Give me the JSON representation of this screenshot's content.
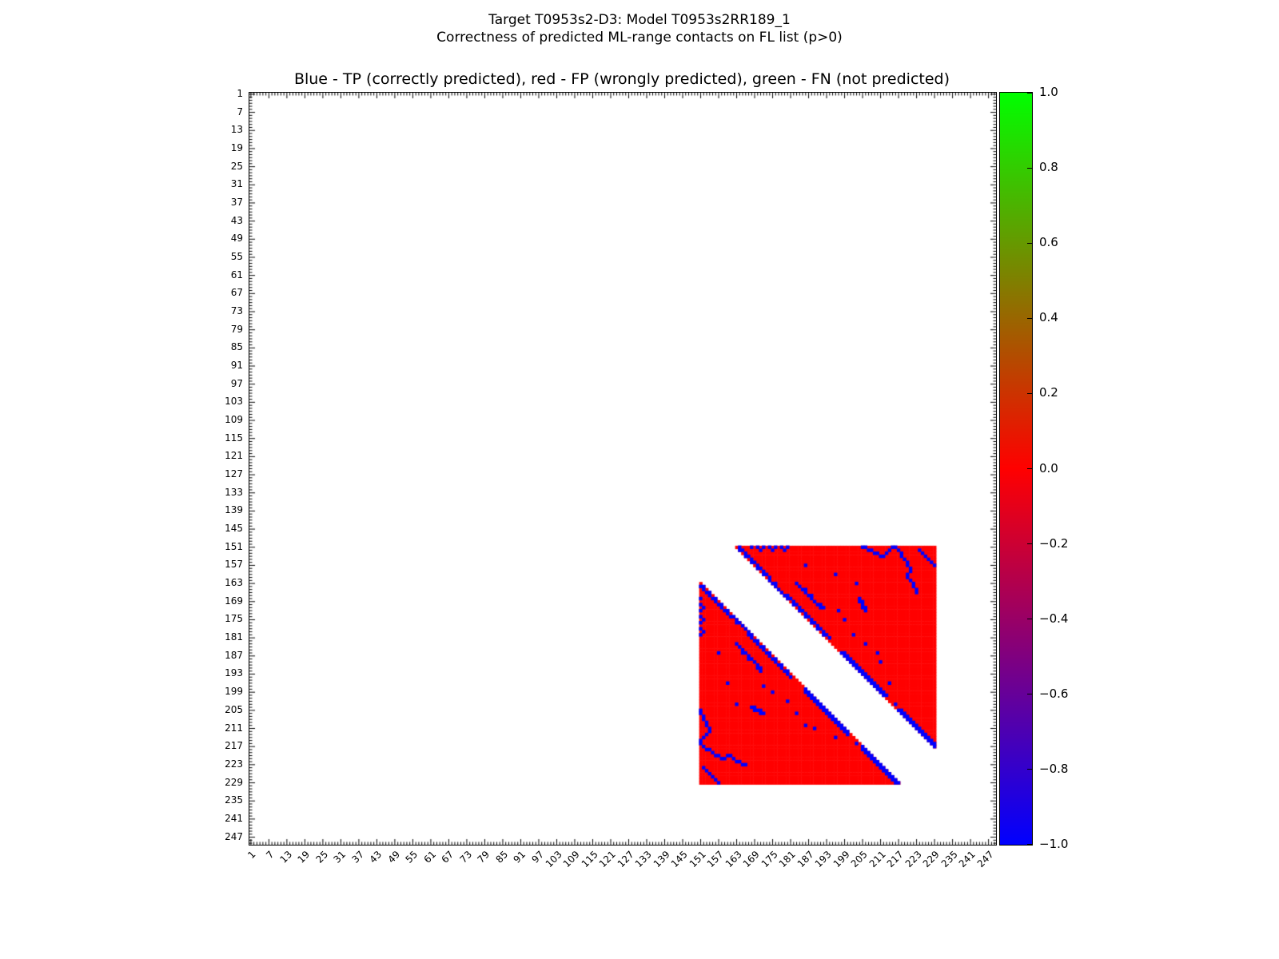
{
  "figure": {
    "suptitle_line1": "Target T0953s2-D3: Model T0953s2RR189_1",
    "suptitle_line2": "Correctness of predicted ML-range contacts on FL list (p>0)",
    "axes_title": "Blue - TP (correctly predicted), red - FP (wrongly predicted), green - FN (not predicted)"
  },
  "chart_data": {
    "type": "heatmap",
    "title": "Blue - TP (correctly predicted), red - FP (wrongly predicted), green - FN (not predicted)",
    "xlabel": "",
    "ylabel": "",
    "x_range": [
      1,
      249
    ],
    "y_range": [
      1,
      249
    ],
    "tick_step": 6,
    "x_tick_labels": [
      "1",
      "7",
      "13",
      "19",
      "25",
      "31",
      "37",
      "43",
      "49",
      "55",
      "61",
      "67",
      "73",
      "79",
      "85",
      "91",
      "97",
      "103",
      "109",
      "115",
      "121",
      "127",
      "133",
      "139",
      "145",
      "151",
      "157",
      "163",
      "169",
      "175",
      "181",
      "187",
      "193",
      "199",
      "205",
      "211",
      "217",
      "223",
      "229",
      "235",
      "241",
      "247"
    ],
    "y_tick_labels": [
      "1",
      "7",
      "13",
      "19",
      "25",
      "31",
      "37",
      "43",
      "49",
      "55",
      "61",
      "67",
      "73",
      "79",
      "85",
      "91",
      "97",
      "103",
      "109",
      "115",
      "121",
      "127",
      "133",
      "139",
      "145",
      "151",
      "157",
      "163",
      "169",
      "175",
      "181",
      "187",
      "193",
      "199",
      "205",
      "211",
      "217",
      "223",
      "229",
      "235",
      "241",
      "247"
    ],
    "legend": {
      "tp": {
        "label": "TP (correctly predicted)",
        "color": "#0000ff"
      },
      "fp": {
        "label": "FP (wrongly predicted)",
        "color": "#ff0000"
      },
      "fn": {
        "label": "FN (not predicted)",
        "color": "#00ff00"
      }
    },
    "region": {
      "start": 151,
      "end": 229,
      "min_sequence_separation": 12,
      "fill": "fp"
    },
    "tp_contacts": [
      [
        151,
        164
      ],
      [
        152,
        164
      ],
      [
        152,
        165
      ],
      [
        153,
        166
      ],
      [
        154,
        166
      ],
      [
        154,
        167
      ],
      [
        155,
        168
      ],
      [
        156,
        168
      ],
      [
        156,
        169
      ],
      [
        157,
        170
      ],
      [
        158,
        170
      ],
      [
        158,
        171
      ],
      [
        159,
        172
      ],
      [
        160,
        172
      ],
      [
        160,
        173
      ],
      [
        161,
        174
      ],
      [
        162,
        174
      ],
      [
        163,
        175
      ],
      [
        163,
        176
      ],
      [
        164,
        176
      ],
      [
        165,
        177
      ],
      [
        166,
        178
      ],
      [
        167,
        179
      ],
      [
        167,
        180
      ],
      [
        168,
        180
      ],
      [
        168,
        181
      ],
      [
        169,
        182
      ],
      [
        170,
        182
      ],
      [
        170,
        183
      ],
      [
        171,
        184
      ],
      [
        172,
        184
      ],
      [
        172,
        185
      ],
      [
        173,
        186
      ],
      [
        174,
        186
      ],
      [
        174,
        187
      ],
      [
        175,
        188
      ],
      [
        176,
        188
      ],
      [
        176,
        189
      ],
      [
        177,
        190
      ],
      [
        178,
        190
      ],
      [
        178,
        191
      ],
      [
        179,
        192
      ],
      [
        180,
        192
      ],
      [
        180,
        193
      ],
      [
        181,
        194
      ],
      [
        186,
        198
      ],
      [
        186,
        199
      ],
      [
        187,
        199
      ],
      [
        187,
        200
      ],
      [
        188,
        200
      ],
      [
        188,
        201
      ],
      [
        189,
        201
      ],
      [
        189,
        202
      ],
      [
        190,
        202
      ],
      [
        190,
        203
      ],
      [
        191,
        203
      ],
      [
        191,
        204
      ],
      [
        192,
        204
      ],
      [
        192,
        205
      ],
      [
        193,
        205
      ],
      [
        193,
        206
      ],
      [
        194,
        206
      ],
      [
        194,
        207
      ],
      [
        195,
        207
      ],
      [
        195,
        208
      ],
      [
        196,
        208
      ],
      [
        196,
        209
      ],
      [
        197,
        209
      ],
      [
        197,
        210
      ],
      [
        198,
        210
      ],
      [
        198,
        211
      ],
      [
        199,
        211
      ],
      [
        199,
        212
      ],
      [
        200,
        212
      ],
      [
        200,
        213
      ],
      [
        205,
        217
      ],
      [
        205,
        218
      ],
      [
        206,
        218
      ],
      [
        206,
        219
      ],
      [
        207,
        219
      ],
      [
        207,
        220
      ],
      [
        208,
        220
      ],
      [
        208,
        221
      ],
      [
        209,
        221
      ],
      [
        209,
        222
      ],
      [
        210,
        222
      ],
      [
        210,
        223
      ],
      [
        211,
        223
      ],
      [
        211,
        224
      ],
      [
        212,
        224
      ],
      [
        212,
        225
      ],
      [
        213,
        225
      ],
      [
        213,
        226
      ],
      [
        214,
        226
      ],
      [
        214,
        227
      ],
      [
        215,
        227
      ],
      [
        215,
        228
      ],
      [
        216,
        228
      ],
      [
        216,
        229
      ],
      [
        217,
        229
      ],
      [
        151,
        168
      ],
      [
        151,
        170
      ],
      [
        152,
        171
      ],
      [
        151,
        172
      ],
      [
        151,
        174
      ],
      [
        152,
        175
      ],
      [
        151,
        176
      ],
      [
        151,
        178
      ],
      [
        152,
        179
      ],
      [
        151,
        180
      ],
      [
        151,
        205
      ],
      [
        151,
        206
      ],
      [
        152,
        207
      ],
      [
        152,
        208
      ],
      [
        153,
        209
      ],
      [
        153,
        210
      ],
      [
        154,
        211
      ],
      [
        154,
        212
      ],
      [
        153,
        213
      ],
      [
        152,
        214
      ],
      [
        151,
        215
      ],
      [
        151,
        216
      ],
      [
        152,
        217
      ],
      [
        153,
        218
      ],
      [
        154,
        218
      ],
      [
        155,
        219
      ],
      [
        156,
        220
      ],
      [
        157,
        220
      ],
      [
        158,
        221
      ],
      [
        159,
        221
      ],
      [
        160,
        220
      ],
      [
        161,
        220
      ],
      [
        162,
        221
      ],
      [
        163,
        222
      ],
      [
        164,
        222
      ],
      [
        165,
        223
      ],
      [
        166,
        223
      ],
      [
        152,
        224
      ],
      [
        153,
        225
      ],
      [
        154,
        226
      ],
      [
        155,
        227
      ],
      [
        156,
        228
      ],
      [
        157,
        229
      ],
      [
        168,
        204
      ],
      [
        169,
        204
      ],
      [
        169,
        205
      ],
      [
        170,
        205
      ],
      [
        171,
        205
      ],
      [
        171,
        206
      ],
      [
        172,
        206
      ],
      [
        163,
        183
      ],
      [
        164,
        184
      ],
      [
        165,
        185
      ],
      [
        165,
        186
      ],
      [
        166,
        186
      ],
      [
        167,
        187
      ],
      [
        167,
        188
      ],
      [
        168,
        188
      ],
      [
        169,
        189
      ],
      [
        170,
        190
      ],
      [
        170,
        191
      ],
      [
        171,
        191
      ],
      [
        171,
        192
      ],
      [
        157,
        186
      ],
      [
        160,
        196
      ],
      [
        163,
        203
      ],
      [
        172,
        197
      ],
      [
        175,
        199
      ],
      [
        180,
        202
      ],
      [
        183,
        206
      ],
      [
        186,
        210
      ],
      [
        189,
        211
      ],
      [
        196,
        214
      ],
      [
        203,
        216
      ]
    ],
    "colorbar": {
      "min": -1.0,
      "max": 1.0,
      "tick_labels": [
        "1.0",
        "0.8",
        "0.6",
        "0.4",
        "0.2",
        "0.0",
        "−0.2",
        "−0.4",
        "−0.6",
        "−0.8",
        "−1.0"
      ],
      "gradient": [
        "#00ff00",
        "#ff0000",
        "#0000ff"
      ]
    }
  }
}
